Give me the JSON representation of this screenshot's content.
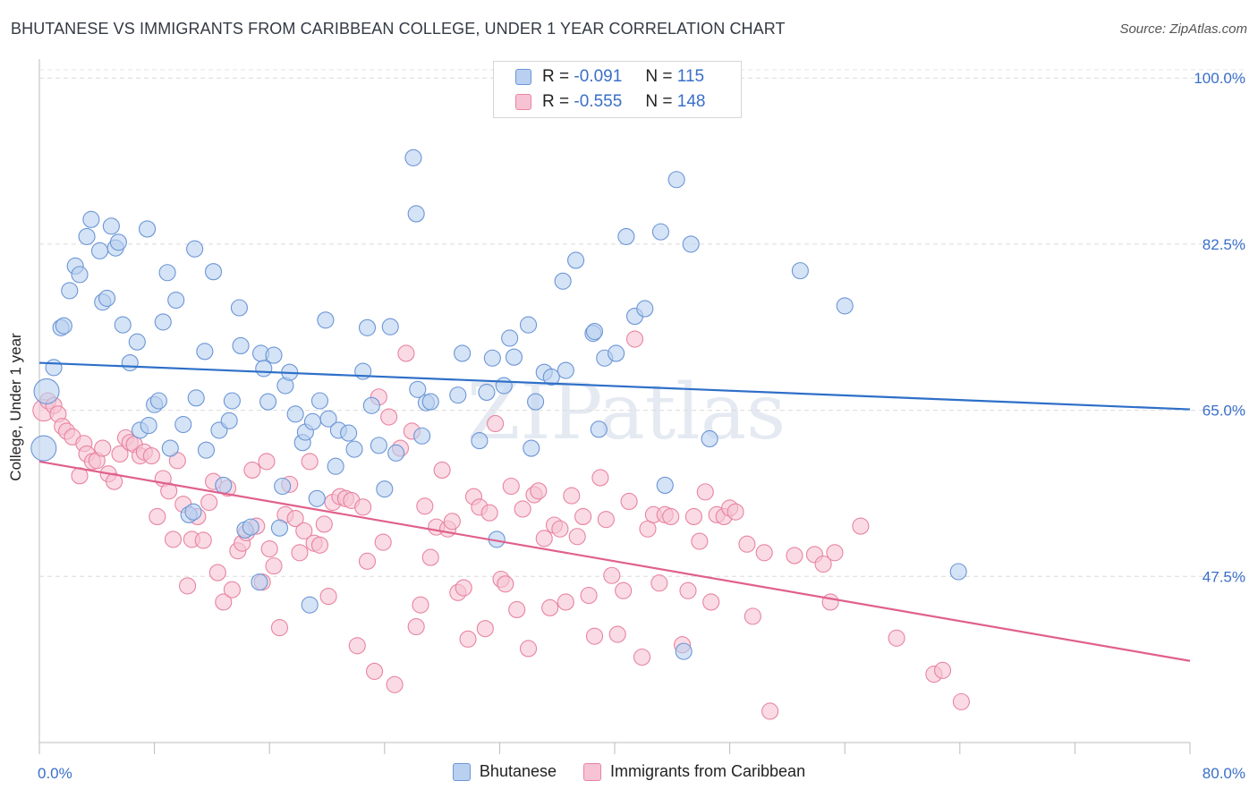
{
  "title": "BHUTANESE VS IMMIGRANTS FROM CARIBBEAN COLLEGE, UNDER 1 YEAR CORRELATION CHART",
  "source": "Source: ZipAtlas.com",
  "watermark": "ZIPatlas",
  "legend": {
    "r_label": "R =",
    "n_label": "N =",
    "series": [
      {
        "r": "-0.091",
        "n": "115"
      },
      {
        "r": "-0.555",
        "n": "148"
      }
    ]
  },
  "colors": {
    "blue_fill": "#b9d0f0",
    "blue_stroke": "#6b96d6",
    "blue_line": "#2e6fc8",
    "pink_fill": "#f7c3d4",
    "pink_stroke": "#e8849f",
    "pink_line": "#e0608c",
    "tick_label": "#3a6fc9"
  },
  "chart_data": {
    "type": "scatter",
    "title": "BHUTANESE VS IMMIGRANTS FROM CARIBBEAN COLLEGE, UNDER 1 YEAR CORRELATION CHART",
    "xlabel": "",
    "ylabel": "College, Under 1 year",
    "xlim": [
      0,
      80
    ],
    "ylim": [
      30,
      102
    ],
    "x_tick_labels": [
      "0.0%",
      "80.0%"
    ],
    "y_ticks": [
      47.5,
      65.0,
      82.5,
      100.0
    ],
    "y_tick_labels": [
      "47.5%",
      "65.0%",
      "82.5%",
      "100.0%"
    ],
    "grid": "horizontal dashed",
    "legend_placement": "bottom",
    "series": [
      {
        "name": "Bhutanese",
        "trend": [
          [
            0,
            70.0
          ],
          [
            80,
            65.1
          ]
        ],
        "points": [
          [
            0.3,
            61
          ],
          [
            0.5,
            67
          ],
          [
            1.0,
            69.5
          ],
          [
            1.5,
            73.7
          ],
          [
            1.7,
            73.9
          ],
          [
            2.1,
            77.6
          ],
          [
            2.5,
            80.2
          ],
          [
            2.8,
            79.3
          ],
          [
            3.3,
            83.3
          ],
          [
            3.6,
            85.1
          ],
          [
            4.2,
            81.8
          ],
          [
            4.4,
            76.4
          ],
          [
            4.7,
            76.8
          ],
          [
            5.0,
            84.4
          ],
          [
            5.3,
            82.1
          ],
          [
            5.5,
            82.7
          ],
          [
            5.8,
            74.0
          ],
          [
            6.3,
            70.0
          ],
          [
            6.8,
            72.2
          ],
          [
            7.0,
            62.9
          ],
          [
            7.5,
            84.1
          ],
          [
            7.6,
            63.4
          ],
          [
            8.0,
            65.6
          ],
          [
            8.3,
            66.0
          ],
          [
            8.6,
            74.3
          ],
          [
            8.9,
            79.5
          ],
          [
            9.1,
            61.0
          ],
          [
            9.5,
            76.6
          ],
          [
            10.0,
            63.5
          ],
          [
            10.4,
            54.0
          ],
          [
            10.7,
            54.3
          ],
          [
            10.8,
            82.0
          ],
          [
            10.9,
            66.3
          ],
          [
            11.5,
            71.2
          ],
          [
            11.6,
            60.8
          ],
          [
            12.1,
            79.6
          ],
          [
            12.5,
            62.9
          ],
          [
            12.8,
            57.1
          ],
          [
            13.2,
            63.9
          ],
          [
            13.4,
            66.0
          ],
          [
            13.9,
            75.8
          ],
          [
            14.0,
            71.8
          ],
          [
            14.3,
            52.4
          ],
          [
            14.7,
            52.7
          ],
          [
            15.3,
            46.9
          ],
          [
            15.4,
            71.0
          ],
          [
            15.6,
            69.4
          ],
          [
            15.9,
            65.9
          ],
          [
            16.3,
            70.8
          ],
          [
            16.7,
            52.6
          ],
          [
            16.9,
            57.0
          ],
          [
            17.1,
            67.6
          ],
          [
            17.4,
            69.0
          ],
          [
            17.8,
            64.6
          ],
          [
            18.3,
            61.6
          ],
          [
            18.5,
            62.7
          ],
          [
            18.8,
            44.5
          ],
          [
            19.0,
            63.8
          ],
          [
            19.3,
            55.7
          ],
          [
            19.5,
            66.0
          ],
          [
            19.9,
            74.5
          ],
          [
            20.1,
            64.1
          ],
          [
            20.6,
            59.1
          ],
          [
            20.8,
            62.9
          ],
          [
            21.5,
            62.6
          ],
          [
            21.9,
            60.9
          ],
          [
            22.5,
            69.1
          ],
          [
            22.8,
            73.7
          ],
          [
            23.1,
            65.5
          ],
          [
            23.6,
            61.3
          ],
          [
            24.0,
            56.7
          ],
          [
            24.4,
            73.8
          ],
          [
            24.8,
            60.5
          ],
          [
            26.0,
            91.6
          ],
          [
            26.2,
            85.7
          ],
          [
            26.3,
            67.2
          ],
          [
            26.6,
            62.3
          ],
          [
            26.9,
            65.8
          ],
          [
            27.2,
            65.9
          ],
          [
            29.1,
            66.6
          ],
          [
            29.4,
            71.0
          ],
          [
            30.6,
            61.8
          ],
          [
            31.1,
            66.9
          ],
          [
            31.5,
            70.5
          ],
          [
            31.8,
            51.4
          ],
          [
            32.3,
            67.6
          ],
          [
            32.7,
            72.6
          ],
          [
            33.0,
            70.6
          ],
          [
            34.0,
            74.0
          ],
          [
            34.2,
            61.0
          ],
          [
            34.5,
            65.9
          ],
          [
            35.1,
            69.0
          ],
          [
            35.6,
            68.5
          ],
          [
            36.4,
            78.6
          ],
          [
            36.6,
            69.2
          ],
          [
            37.3,
            80.8
          ],
          [
            38.5,
            73.1
          ],
          [
            38.6,
            73.3
          ],
          [
            38.9,
            63.0
          ],
          [
            39.3,
            70.5
          ],
          [
            40.1,
            71.0
          ],
          [
            40.8,
            83.3
          ],
          [
            41.4,
            74.9
          ],
          [
            42.1,
            75.7
          ],
          [
            43.2,
            83.8
          ],
          [
            43.5,
            57.1
          ],
          [
            44.3,
            89.3
          ],
          [
            44.8,
            39.6
          ],
          [
            45.3,
            82.5
          ],
          [
            46.6,
            62.0
          ],
          [
            52.9,
            79.7
          ],
          [
            56.0,
            76.0
          ],
          [
            63.9,
            48.0
          ]
        ]
      },
      {
        "name": "Immigrants from Caribbean",
        "trend": [
          [
            0,
            59.6
          ],
          [
            80,
            38.6
          ]
        ],
        "points": [
          [
            0.3,
            65.0
          ],
          [
            0.6,
            66.0
          ],
          [
            1.0,
            65.5
          ],
          [
            1.3,
            64.6
          ],
          [
            1.6,
            63.3
          ],
          [
            1.9,
            62.8
          ],
          [
            2.3,
            62.2
          ],
          [
            2.8,
            58.1
          ],
          [
            3.1,
            61.5
          ],
          [
            3.3,
            60.4
          ],
          [
            3.7,
            59.6
          ],
          [
            4.0,
            59.7
          ],
          [
            4.4,
            61.0
          ],
          [
            4.8,
            58.3
          ],
          [
            5.2,
            57.5
          ],
          [
            5.6,
            60.4
          ],
          [
            6.0,
            62.1
          ],
          [
            6.3,
            61.6
          ],
          [
            6.6,
            61.4
          ],
          [
            7.0,
            60.2
          ],
          [
            7.3,
            60.6
          ],
          [
            7.8,
            60.2
          ],
          [
            8.2,
            53.8
          ],
          [
            8.6,
            57.8
          ],
          [
            9.0,
            56.5
          ],
          [
            9.3,
            51.4
          ],
          [
            9.6,
            59.7
          ],
          [
            10.0,
            55.1
          ],
          [
            10.3,
            46.5
          ],
          [
            10.6,
            51.4
          ],
          [
            11.0,
            53.8
          ],
          [
            11.4,
            51.3
          ],
          [
            11.8,
            55.3
          ],
          [
            12.1,
            57.5
          ],
          [
            12.4,
            47.9
          ],
          [
            12.8,
            44.8
          ],
          [
            13.1,
            56.8
          ],
          [
            13.4,
            46.1
          ],
          [
            13.8,
            50.2
          ],
          [
            14.1,
            51.0
          ],
          [
            14.4,
            52.1
          ],
          [
            14.8,
            58.7
          ],
          [
            15.1,
            52.8
          ],
          [
            15.5,
            46.9
          ],
          [
            15.8,
            59.6
          ],
          [
            16.0,
            50.4
          ],
          [
            16.3,
            48.6
          ],
          [
            16.7,
            42.1
          ],
          [
            17.1,
            54.0
          ],
          [
            17.4,
            57.2
          ],
          [
            17.8,
            53.6
          ],
          [
            18.1,
            50.0
          ],
          [
            18.4,
            52.3
          ],
          [
            18.8,
            59.6
          ],
          [
            19.1,
            51.0
          ],
          [
            19.5,
            50.8
          ],
          [
            19.8,
            53.0
          ],
          [
            20.1,
            45.4
          ],
          [
            20.4,
            55.3
          ],
          [
            20.9,
            55.9
          ],
          [
            21.3,
            55.7
          ],
          [
            21.7,
            55.5
          ],
          [
            22.1,
            40.2
          ],
          [
            22.5,
            54.8
          ],
          [
            22.8,
            49.1
          ],
          [
            23.3,
            37.5
          ],
          [
            23.6,
            66.4
          ],
          [
            23.9,
            51.1
          ],
          [
            24.3,
            64.3
          ],
          [
            24.7,
            36.1
          ],
          [
            25.1,
            61.0
          ],
          [
            25.5,
            71.0
          ],
          [
            25.9,
            62.8
          ],
          [
            26.2,
            42.2
          ],
          [
            26.5,
            44.5
          ],
          [
            26.8,
            54.9
          ],
          [
            27.2,
            49.5
          ],
          [
            27.6,
            52.7
          ],
          [
            28.0,
            58.7
          ],
          [
            28.4,
            52.5
          ],
          [
            28.7,
            53.3
          ],
          [
            29.1,
            45.8
          ],
          [
            29.5,
            46.3
          ],
          [
            29.8,
            40.9
          ],
          [
            30.2,
            55.9
          ],
          [
            30.6,
            54.8
          ],
          [
            31.0,
            42.0
          ],
          [
            31.3,
            54.2
          ],
          [
            31.7,
            63.6
          ],
          [
            32.1,
            47.2
          ],
          [
            32.4,
            46.7
          ],
          [
            32.8,
            57.0
          ],
          [
            33.2,
            44.0
          ],
          [
            33.6,
            54.6
          ],
          [
            34.0,
            39.9
          ],
          [
            34.4,
            56.1
          ],
          [
            34.7,
            56.5
          ],
          [
            35.1,
            51.5
          ],
          [
            35.5,
            44.2
          ],
          [
            35.8,
            52.9
          ],
          [
            36.2,
            52.5
          ],
          [
            36.6,
            44.8
          ],
          [
            37.0,
            56.0
          ],
          [
            37.4,
            51.7
          ],
          [
            37.8,
            53.8
          ],
          [
            38.2,
            45.5
          ],
          [
            38.6,
            41.2
          ],
          [
            39.0,
            57.9
          ],
          [
            39.4,
            53.5
          ],
          [
            39.8,
            47.6
          ],
          [
            40.2,
            41.4
          ],
          [
            40.6,
            46.0
          ],
          [
            41.0,
            55.4
          ],
          [
            41.4,
            72.5
          ],
          [
            41.9,
            39.0
          ],
          [
            42.3,
            52.5
          ],
          [
            42.7,
            54.0
          ],
          [
            43.1,
            46.8
          ],
          [
            43.5,
            54.0
          ],
          [
            43.9,
            53.8
          ],
          [
            44.7,
            40.3
          ],
          [
            45.1,
            46.0
          ],
          [
            45.5,
            53.8
          ],
          [
            45.9,
            51.2
          ],
          [
            46.3,
            56.4
          ],
          [
            46.7,
            44.8
          ],
          [
            47.1,
            54.0
          ],
          [
            47.6,
            53.8
          ],
          [
            48.0,
            54.7
          ],
          [
            48.4,
            54.3
          ],
          [
            49.2,
            50.9
          ],
          [
            49.6,
            43.3
          ],
          [
            50.4,
            50.0
          ],
          [
            50.8,
            33.3
          ],
          [
            52.5,
            49.7
          ],
          [
            53.9,
            49.8
          ],
          [
            54.5,
            48.8
          ],
          [
            55.0,
            44.8
          ],
          [
            55.3,
            50.0
          ],
          [
            57.1,
            52.8
          ],
          [
            59.6,
            41.0
          ],
          [
            62.2,
            37.2
          ],
          [
            62.8,
            37.6
          ],
          [
            64.1,
            34.3
          ]
        ]
      }
    ]
  }
}
